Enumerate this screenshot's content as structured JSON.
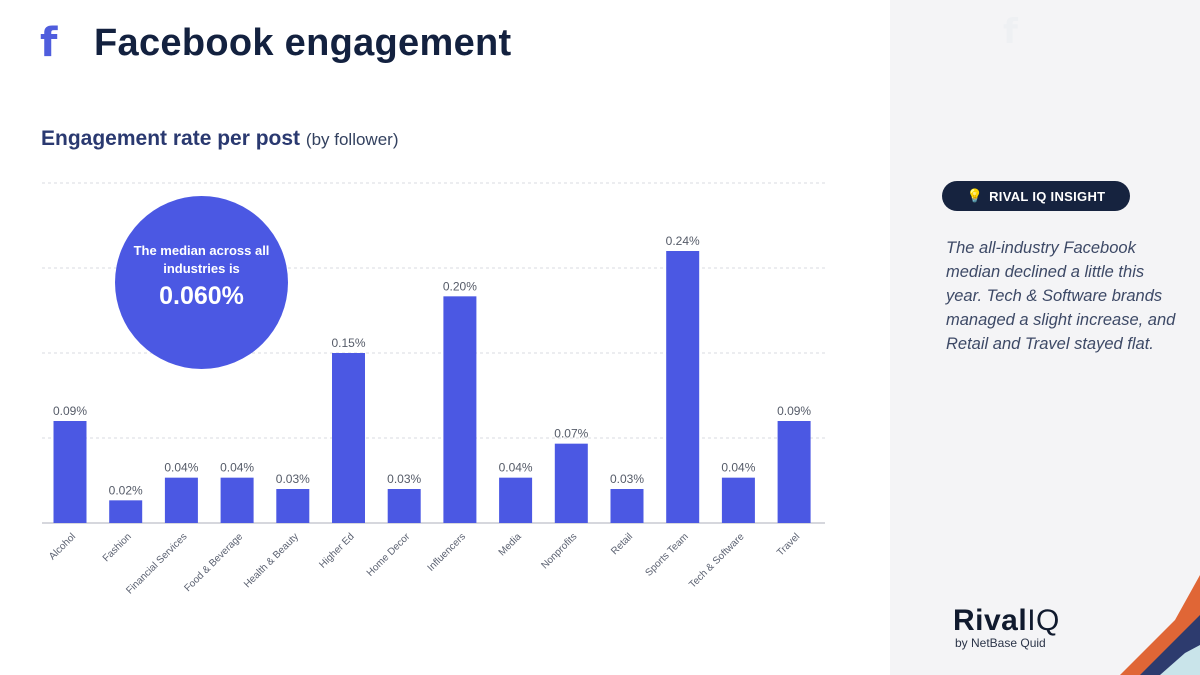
{
  "header": {
    "title": "Facebook engagement",
    "icon": "facebook-icon",
    "icon_glyph": "f"
  },
  "watermark": {
    "glyph": "f"
  },
  "subtitle": {
    "main": "Engagement rate per post",
    "suffix": "(by follower)"
  },
  "median": {
    "text": "The median across all industries is",
    "value": "0.060%"
  },
  "insight": {
    "badge": "RIVAL IQ INSIGHT",
    "badge_icon": "lightbulb-icon",
    "text": "The all-industry Facebook median declined a little this year. Tech & Software brands managed a slight increase, and Retail and Travel stayed flat."
  },
  "brand": {
    "name_a": "Rival",
    "name_b": "IQ",
    "by": "by NetBase Quid"
  },
  "colors": {
    "bar": "#4b58e3",
    "title": "#13213f",
    "badge_bg": "#16233f",
    "panel_bg": "#f4f4f6"
  },
  "chart_data": {
    "type": "bar",
    "categories": [
      "Alcohol",
      "Fashion",
      "Financial Services",
      "Food & Beverage",
      "Health & Beauty",
      "Higher Ed",
      "Home Decor",
      "Influencers",
      "Media",
      "Nonprofits",
      "Retail",
      "Sports Team",
      "Tech & Software",
      "Travel"
    ],
    "values": [
      0.09,
      0.02,
      0.04,
      0.04,
      0.03,
      0.15,
      0.03,
      0.2,
      0.04,
      0.07,
      0.03,
      0.24,
      0.04,
      0.09
    ],
    "labels": [
      "0.09%",
      "0.02%",
      "0.04%",
      "0.04%",
      "0.03%",
      "0.15%",
      "0.03%",
      "0.20%",
      "0.04%",
      "0.07%",
      "0.03%",
      "0.24%",
      "0.04%",
      "0.09%"
    ],
    "ylim": [
      0,
      0.3
    ],
    "grid": true,
    "title": "Engagement rate per post",
    "xlabel": "",
    "ylabel": ""
  }
}
